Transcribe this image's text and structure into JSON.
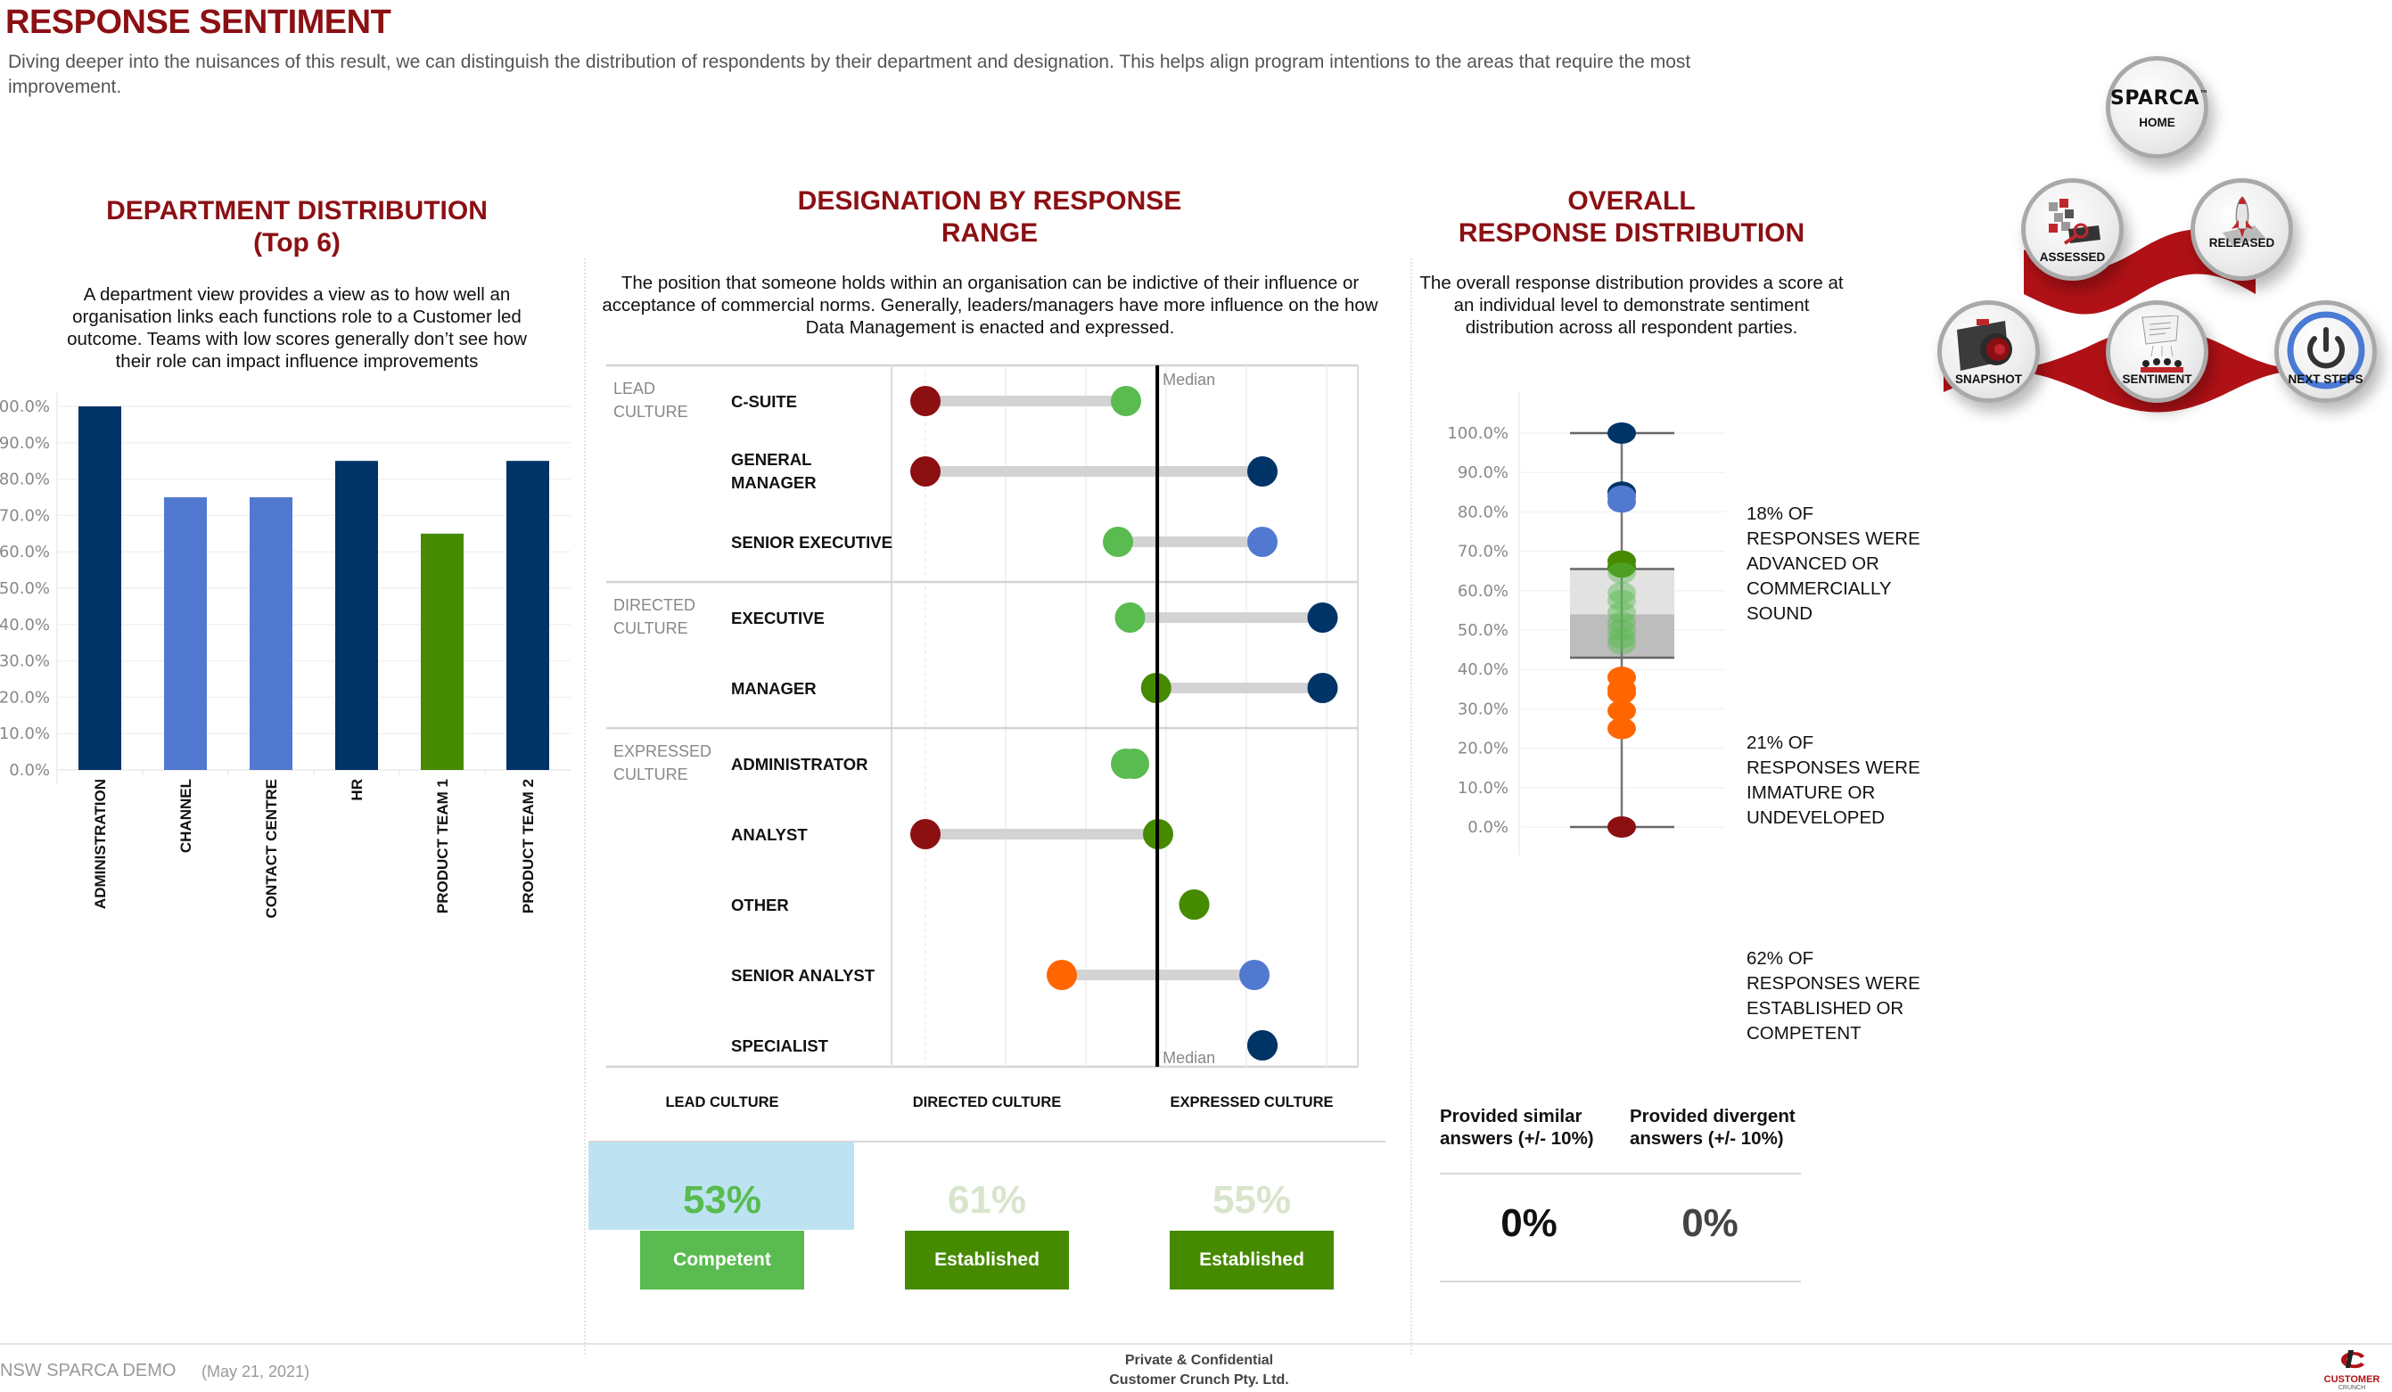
{
  "header": {
    "title": "RESPONSE SENTIMENT",
    "description": "Diving deeper into the nuisances of this result, we can distinguish the distribution of respondents by their department and designation. This helps align program intentions to the areas that require the most improvement."
  },
  "department": {
    "title_line1": "DEPARTMENT DISTRIBUTION",
    "title_line2": "(Top 6)",
    "description": "A department view provides a view as to how well an organisation links each functions role to a Customer led outcome.  Teams with low scores generally don’t see how their role can impact influence improvements"
  },
  "designation": {
    "title_line1": "DESIGNATION BY RESPONSE",
    "title_line2": "RANGE",
    "description": "The position that someone holds within an organisation can be indictive of their influence or acceptance of commercial norms. Generally, leaders/managers have more influence on the how Data Management is enacted and expressed."
  },
  "overall": {
    "title_line1": "OVERALL",
    "title_line2": "RESPONSE DISTRIBUTION",
    "description": "The overall response distribution provides a score at an individual level to demonstrate sentiment distribution across all respondent parties.",
    "annotations": [
      "18% OF RESPONSES WERE ADVANCED OR COMMERCIALLY SOUND",
      "21% OF RESPONSES WERE IMMATURE OR UNDEVELOPED",
      "62% OF RESPONSES WERE ESTABLISHED OR COMPETENT"
    ],
    "similar": {
      "label": "Provided similar answers (+/- 10%)",
      "value": "0%"
    },
    "divergent": {
      "label": "Provided divergent answers (+/- 10%)",
      "value": "0%"
    }
  },
  "culture_scores": [
    {
      "label": "LEAD CULTURE",
      "value": "53%",
      "rating": "Competent",
      "selected": true
    },
    {
      "label": "DIRECTED CULTURE",
      "value": "61%",
      "rating": "Established",
      "selected": false
    },
    {
      "label": "EXPRESSED CULTURE",
      "value": "55%",
      "rating": "Established",
      "selected": false
    }
  ],
  "colors": {
    "brand_red": "#8b1014",
    "navy": "#003366",
    "light_blue": "#5179d0",
    "green": "#468a00",
    "light_green": "#59bb50",
    "orange": "#ff6600",
    "dark_red": "#8c0f12",
    "selected_bg": "#bde3f2"
  },
  "nav": {
    "home_logo": "SPARCA",
    "home_tm": "™",
    "items": [
      {
        "id": "home",
        "label": "HOME",
        "icon": "sparca-logo-icon"
      },
      {
        "id": "assessed",
        "label": "ASSESSED",
        "icon": "cubes-magnifier-icon"
      },
      {
        "id": "released",
        "label": "RELEASED",
        "icon": "rocket-icon"
      },
      {
        "id": "snapshot",
        "label": "SNAPSHOT",
        "icon": "camera-icon"
      },
      {
        "id": "sentiment",
        "label": "SENTIMENT",
        "icon": "speech-people-icon"
      },
      {
        "id": "next_steps",
        "label": "NEXT STEPS",
        "icon": "power-icon"
      }
    ]
  },
  "footer": {
    "project": "NSW SPARCA DEMO",
    "date": "(May 21, 2021)",
    "confidential_line1": "Private & Confidential",
    "confidential_line2": "Customer Crunch Pty. Ltd.",
    "logo_text": "CUSTOMER",
    "logo_subtext": "CRUNCH"
  },
  "chart_data": [
    {
      "id": "department",
      "type": "bar",
      "title": "DEPARTMENT DISTRIBUTION (Top 6)",
      "xlabel": "",
      "ylabel": "",
      "categories": [
        "ADMINISTRATION",
        "CHANNEL",
        "CONTACT CENTRE",
        "HR",
        "PRODUCT TEAM 1",
        "PRODUCT TEAM 2"
      ],
      "values": [
        100,
        75,
        75,
        85,
        65,
        85
      ],
      "bar_colors": [
        "#003366",
        "#5179d0",
        "#5179d0",
        "#003366",
        "#468a00",
        "#003366"
      ],
      "ylim": [
        0,
        100
      ],
      "yticks": [
        "0.0%",
        "10.0%",
        "20.0%",
        "30.0%",
        "40.0%",
        "50.0%",
        "60.0%",
        "70.0%",
        "80.0%",
        "90.0%",
        "100.0%"
      ],
      "grid": true
    },
    {
      "id": "designation",
      "type": "scatter",
      "subtype": "dumbbell",
      "title": "DESIGNATION BY RESPONSE RANGE",
      "xlim": [
        0,
        100
      ],
      "median": 57.8,
      "median_label": "Median",
      "groups": [
        {
          "label": "LEAD CULTURE",
          "rows": [
            {
              "label": "C-SUITE",
              "min": 0,
              "max": 50,
              "min_color": "#8c0f12",
              "max_color": "#59bb50"
            },
            {
              "label": "GENERAL MANAGER",
              "min": 0,
              "max": 84,
              "min_color": "#8c0f12",
              "max_color": "#003366"
            },
            {
              "label": "SENIOR EXECUTIVE",
              "min": 48,
              "max": 84,
              "min_color": "#59bb50",
              "max_color": "#5179d0"
            }
          ]
        },
        {
          "label": "DIRECTED CULTURE",
          "rows": [
            {
              "label": "EXECUTIVE",
              "min": 51,
              "max": 99,
              "min_color": "#59bb50",
              "max_color": "#003366"
            },
            {
              "label": "MANAGER",
              "min": 57.5,
              "max": 99,
              "min_color": "#468a00",
              "max_color": "#003366"
            }
          ]
        },
        {
          "label": "EXPRESSED CULTURE",
          "rows": [
            {
              "label": "ADMINISTRATOR",
              "min": 50,
              "max": 52,
              "min_color": "#59bb50",
              "max_color": "#59bb50"
            },
            {
              "label": "ANALYST",
              "min": 0,
              "max": 58,
              "min_color": "#8c0f12",
              "max_color": "#468a00"
            },
            {
              "label": "OTHER",
              "min": 67,
              "max": 67,
              "min_color": "#468a00",
              "max_color": "#468a00"
            },
            {
              "label": "SENIOR ANALYST",
              "min": 34,
              "max": 82,
              "min_color": "#ff6600",
              "max_color": "#5179d0"
            },
            {
              "label": "SPECIALIST",
              "min": 84,
              "max": 84,
              "min_color": "#003366",
              "max_color": "#003366"
            }
          ]
        }
      ]
    },
    {
      "id": "overall",
      "type": "scatter",
      "subtype": "boxplot",
      "title": "OVERALL RESPONSE DISTRIBUTION",
      "ylim": [
        0,
        100
      ],
      "yticks": [
        "0.0%",
        "10.0%",
        "20.0%",
        "30.0%",
        "40.0%",
        "50.0%",
        "60.0%",
        "70.0%",
        "80.0%",
        "90.0%",
        "100.0%"
      ],
      "box": {
        "min": 0,
        "q1": 43,
        "median": 54,
        "q3": 65.5,
        "max": 100
      },
      "points": [
        {
          "value": 100,
          "color": "#003366"
        },
        {
          "value": 85,
          "color": "#003366"
        },
        {
          "value": 84,
          "color": "#5179d0"
        },
        {
          "value": 82.5,
          "color": "#5179d0"
        },
        {
          "value": 67.5,
          "color": "#468a00"
        },
        {
          "value": 66,
          "color": "#468a00"
        },
        {
          "value": 64.5,
          "color": "#59bb50"
        },
        {
          "value": 59.5,
          "color": "#59bb50"
        },
        {
          "value": 57.5,
          "color": "#59bb50"
        },
        {
          "value": 54.5,
          "color": "#59bb50"
        },
        {
          "value": 52,
          "color": "#59bb50"
        },
        {
          "value": 50,
          "color": "#59bb50"
        },
        {
          "value": 48,
          "color": "#59bb50"
        },
        {
          "value": 46.5,
          "color": "#59bb50"
        },
        {
          "value": 38,
          "color": "#ff6600"
        },
        {
          "value": 35,
          "color": "#ff6600"
        },
        {
          "value": 34,
          "color": "#ff6600"
        },
        {
          "value": 29.5,
          "color": "#ff6600"
        },
        {
          "value": 25,
          "color": "#ff6600"
        },
        {
          "value": 0,
          "color": "#8c0f12"
        }
      ]
    }
  ]
}
